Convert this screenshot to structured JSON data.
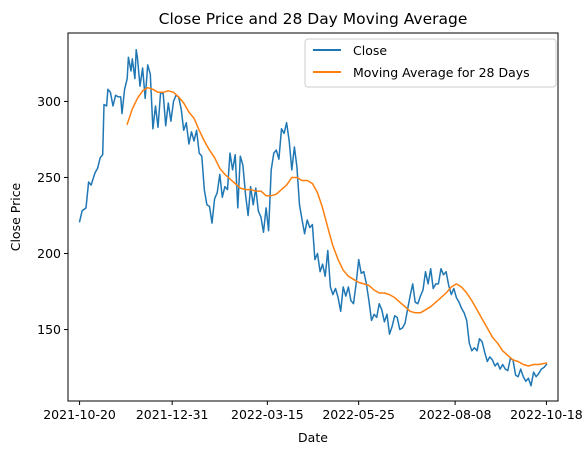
{
  "chart_data": {
    "type": "line",
    "title": "Close Price and 28 Day Moving Average",
    "xlabel": "Date",
    "ylabel": "Close Price",
    "x_range": [
      "2021-10-11",
      "2022-10-27"
    ],
    "y_range": [
      103,
      345
    ],
    "x_ticks": [
      "2021-10-20",
      "2021-12-31",
      "2022-03-15",
      "2022-05-25",
      "2022-08-08",
      "2022-10-18"
    ],
    "y_ticks": [
      150,
      200,
      250,
      300
    ],
    "grid": false,
    "legend_position": "upper right",
    "series": [
      {
        "name": "Close",
        "color": "#1f77b4",
        "points": [
          [
            "2021-10-20",
            221
          ],
          [
            "2021-10-22",
            228
          ],
          [
            "2021-10-25",
            230
          ],
          [
            "2021-10-27",
            247
          ],
          [
            "2021-10-29",
            245
          ],
          [
            "2021-11-01",
            253
          ],
          [
            "2021-11-03",
            256
          ],
          [
            "2021-11-05",
            263
          ],
          [
            "2021-11-07",
            265
          ],
          [
            "2021-11-08",
            298
          ],
          [
            "2021-11-10",
            297
          ],
          [
            "2021-11-11",
            308
          ],
          [
            "2021-11-13",
            306
          ],
          [
            "2021-11-15",
            297
          ],
          [
            "2021-11-17",
            304
          ],
          [
            "2021-11-19",
            303
          ],
          [
            "2021-11-21",
            303
          ],
          [
            "2021-11-22",
            292
          ],
          [
            "2021-11-24",
            308
          ],
          [
            "2021-11-26",
            315
          ],
          [
            "2021-11-27",
            329
          ],
          [
            "2021-11-29",
            320
          ],
          [
            "2021-11-30",
            328
          ],
          [
            "2021-12-02",
            315
          ],
          [
            "2021-12-03",
            334
          ],
          [
            "2021-12-04",
            329
          ],
          [
            "2021-12-06",
            310
          ],
          [
            "2021-12-08",
            322
          ],
          [
            "2021-12-10",
            302
          ],
          [
            "2021-12-12",
            324
          ],
          [
            "2021-12-14",
            318
          ],
          [
            "2021-12-16",
            282
          ],
          [
            "2021-12-18",
            297
          ],
          [
            "2021-12-20",
            283
          ],
          [
            "2021-12-22",
            306
          ],
          [
            "2021-12-24",
            305
          ],
          [
            "2021-12-26",
            284
          ],
          [
            "2021-12-28",
            299
          ],
          [
            "2021-12-30",
            287
          ],
          [
            "2022-01-01",
            300
          ],
          [
            "2022-01-03",
            304
          ],
          [
            "2022-01-05",
            303
          ],
          [
            "2022-01-07",
            295
          ],
          [
            "2022-01-09",
            281
          ],
          [
            "2022-01-11",
            286
          ],
          [
            "2022-01-13",
            272
          ],
          [
            "2022-01-15",
            280
          ],
          [
            "2022-01-17",
            274
          ],
          [
            "2022-01-19",
            281
          ],
          [
            "2022-01-21",
            266
          ],
          [
            "2022-01-23",
            264
          ],
          [
            "2022-01-25",
            242
          ],
          [
            "2022-01-27",
            232
          ],
          [
            "2022-01-29",
            231
          ],
          [
            "2022-01-31",
            220
          ],
          [
            "2022-02-02",
            236
          ],
          [
            "2022-02-04",
            240
          ],
          [
            "2022-02-06",
            252
          ],
          [
            "2022-02-08",
            237
          ],
          [
            "2022-02-10",
            244
          ],
          [
            "2022-02-12",
            242
          ],
          [
            "2022-02-14",
            266
          ],
          [
            "2022-02-16",
            255
          ],
          [
            "2022-02-18",
            265
          ],
          [
            "2022-02-20",
            230
          ],
          [
            "2022-02-22",
            264
          ],
          [
            "2022-02-24",
            258
          ],
          [
            "2022-02-26",
            239
          ],
          [
            "2022-02-28",
            225
          ],
          [
            "2022-03-02",
            244
          ],
          [
            "2022-03-04",
            232
          ],
          [
            "2022-03-06",
            243
          ],
          [
            "2022-03-08",
            228
          ],
          [
            "2022-03-10",
            224
          ],
          [
            "2022-03-12",
            214
          ],
          [
            "2022-03-14",
            230
          ],
          [
            "2022-03-16",
            215
          ],
          [
            "2022-03-18",
            255
          ],
          [
            "2022-03-20",
            266
          ],
          [
            "2022-03-22",
            268
          ],
          [
            "2022-03-24",
            262
          ],
          [
            "2022-03-26",
            282
          ],
          [
            "2022-03-28",
            279
          ],
          [
            "2022-03-30",
            286
          ],
          [
            "2022-04-01",
            274
          ],
          [
            "2022-04-03",
            255
          ],
          [
            "2022-04-05",
            270
          ],
          [
            "2022-04-07",
            257
          ],
          [
            "2022-04-09",
            232
          ],
          [
            "2022-04-11",
            222
          ],
          [
            "2022-04-13",
            213
          ],
          [
            "2022-04-15",
            222
          ],
          [
            "2022-04-17",
            217
          ],
          [
            "2022-04-19",
            219
          ],
          [
            "2022-04-21",
            196
          ],
          [
            "2022-04-23",
            200
          ],
          [
            "2022-04-25",
            188
          ],
          [
            "2022-04-27",
            193
          ],
          [
            "2022-04-29",
            185
          ],
          [
            "2022-05-01",
            202
          ],
          [
            "2022-05-03",
            178
          ],
          [
            "2022-05-05",
            173
          ],
          [
            "2022-05-07",
            177
          ],
          [
            "2022-05-09",
            171
          ],
          [
            "2022-05-11",
            162
          ],
          [
            "2022-05-13",
            178
          ],
          [
            "2022-05-15",
            172
          ],
          [
            "2022-05-17",
            178
          ],
          [
            "2022-05-19",
            169
          ],
          [
            "2022-05-21",
            167
          ],
          [
            "2022-05-23",
            180
          ],
          [
            "2022-05-25",
            196
          ],
          [
            "2022-05-27",
            187
          ],
          [
            "2022-05-29",
            188
          ],
          [
            "2022-05-31",
            180
          ],
          [
            "2022-06-02",
            169
          ],
          [
            "2022-06-04",
            156
          ],
          [
            "2022-06-06",
            160
          ],
          [
            "2022-06-08",
            158
          ],
          [
            "2022-06-10",
            167
          ],
          [
            "2022-06-12",
            163
          ],
          [
            "2022-06-14",
            155
          ],
          [
            "2022-06-16",
            160
          ],
          [
            "2022-06-18",
            147
          ],
          [
            "2022-06-20",
            152
          ],
          [
            "2022-06-22",
            159
          ],
          [
            "2022-06-24",
            158
          ],
          [
            "2022-06-26",
            150
          ],
          [
            "2022-06-28",
            151
          ],
          [
            "2022-06-30",
            154
          ],
          [
            "2022-07-02",
            163
          ],
          [
            "2022-07-04",
            172
          ],
          [
            "2022-07-06",
            180
          ],
          [
            "2022-07-08",
            168
          ],
          [
            "2022-07-10",
            167
          ],
          [
            "2022-07-12",
            172
          ],
          [
            "2022-07-14",
            176
          ],
          [
            "2022-07-16",
            188
          ],
          [
            "2022-07-18",
            180
          ],
          [
            "2022-07-20",
            190
          ],
          [
            "2022-07-22",
            177
          ],
          [
            "2022-07-24",
            180
          ],
          [
            "2022-07-26",
            180
          ],
          [
            "2022-07-28",
            190
          ],
          [
            "2022-07-30",
            186
          ],
          [
            "2022-08-01",
            188
          ],
          [
            "2022-08-03",
            179
          ],
          [
            "2022-08-05",
            173
          ],
          [
            "2022-08-07",
            177
          ],
          [
            "2022-08-09",
            171
          ],
          [
            "2022-08-11",
            168
          ],
          [
            "2022-08-13",
            164
          ],
          [
            "2022-08-15",
            161
          ],
          [
            "2022-08-17",
            156
          ],
          [
            "2022-08-19",
            141
          ],
          [
            "2022-08-21",
            136
          ],
          [
            "2022-08-23",
            138
          ],
          [
            "2022-08-25",
            136
          ],
          [
            "2022-08-27",
            144
          ],
          [
            "2022-08-29",
            142
          ],
          [
            "2022-08-31",
            135
          ],
          [
            "2022-09-02",
            129
          ],
          [
            "2022-09-04",
            132
          ],
          [
            "2022-09-06",
            130
          ],
          [
            "2022-09-08",
            126
          ],
          [
            "2022-09-10",
            128
          ],
          [
            "2022-09-12",
            124
          ],
          [
            "2022-09-14",
            127
          ],
          [
            "2022-09-16",
            124
          ],
          [
            "2022-09-18",
            123
          ],
          [
            "2022-09-20",
            131
          ],
          [
            "2022-09-22",
            130
          ],
          [
            "2022-09-24",
            120
          ],
          [
            "2022-09-26",
            119
          ],
          [
            "2022-09-28",
            124
          ],
          [
            "2022-09-30",
            119
          ],
          [
            "2022-10-02",
            116
          ],
          [
            "2022-10-04",
            118
          ],
          [
            "2022-10-06",
            113
          ],
          [
            "2022-10-08",
            122
          ],
          [
            "2022-10-10",
            119
          ],
          [
            "2022-10-12",
            121
          ],
          [
            "2022-10-14",
            124
          ],
          [
            "2022-10-16",
            125
          ],
          [
            "2022-10-18",
            127
          ]
        ]
      },
      {
        "name": "Moving Average for 28 Days",
        "color": "#ff7f0e",
        "points": [
          [
            "2021-11-26",
            285
          ],
          [
            "2021-11-30",
            295
          ],
          [
            "2021-12-04",
            302
          ],
          [
            "2021-12-08",
            307
          ],
          [
            "2021-12-12",
            309
          ],
          [
            "2021-12-16",
            308
          ],
          [
            "2021-12-20",
            306
          ],
          [
            "2021-12-24",
            306
          ],
          [
            "2021-12-28",
            307
          ],
          [
            "2022-01-01",
            306
          ],
          [
            "2022-01-05",
            303
          ],
          [
            "2022-01-09",
            299
          ],
          [
            "2022-01-13",
            293
          ],
          [
            "2022-01-17",
            289
          ],
          [
            "2022-01-21",
            281
          ],
          [
            "2022-01-25",
            274
          ],
          [
            "2022-01-29",
            268
          ],
          [
            "2022-02-02",
            263
          ],
          [
            "2022-02-06",
            256
          ],
          [
            "2022-02-10",
            252
          ],
          [
            "2022-02-14",
            249
          ],
          [
            "2022-02-18",
            246
          ],
          [
            "2022-02-22",
            243
          ],
          [
            "2022-02-26",
            242
          ],
          [
            "2022-03-02",
            242
          ],
          [
            "2022-03-06",
            241
          ],
          [
            "2022-03-10",
            241
          ],
          [
            "2022-03-14",
            238
          ],
          [
            "2022-03-18",
            238
          ],
          [
            "2022-03-22",
            239
          ],
          [
            "2022-03-26",
            242
          ],
          [
            "2022-03-30",
            245
          ],
          [
            "2022-04-03",
            250
          ],
          [
            "2022-04-07",
            250
          ],
          [
            "2022-04-11",
            248
          ],
          [
            "2022-04-15",
            248
          ],
          [
            "2022-04-19",
            246
          ],
          [
            "2022-04-23",
            240
          ],
          [
            "2022-04-27",
            230
          ],
          [
            "2022-05-01",
            217
          ],
          [
            "2022-05-05",
            205
          ],
          [
            "2022-05-09",
            196
          ],
          [
            "2022-05-13",
            189
          ],
          [
            "2022-05-17",
            185
          ],
          [
            "2022-05-21",
            183
          ],
          [
            "2022-05-25",
            181
          ],
          [
            "2022-05-29",
            180
          ],
          [
            "2022-06-02",
            179
          ],
          [
            "2022-06-06",
            176
          ],
          [
            "2022-06-10",
            174
          ],
          [
            "2022-06-14",
            174
          ],
          [
            "2022-06-18",
            173
          ],
          [
            "2022-06-22",
            171
          ],
          [
            "2022-06-26",
            168
          ],
          [
            "2022-06-30",
            165
          ],
          [
            "2022-07-04",
            162
          ],
          [
            "2022-07-08",
            161
          ],
          [
            "2022-07-12",
            161
          ],
          [
            "2022-07-16",
            163
          ],
          [
            "2022-07-20",
            165
          ],
          [
            "2022-07-24",
            168
          ],
          [
            "2022-07-28",
            171
          ],
          [
            "2022-08-01",
            174
          ],
          [
            "2022-08-05",
            178
          ],
          [
            "2022-08-09",
            180
          ],
          [
            "2022-08-13",
            178
          ],
          [
            "2022-08-17",
            174
          ],
          [
            "2022-08-21",
            169
          ],
          [
            "2022-08-25",
            163
          ],
          [
            "2022-08-29",
            157
          ],
          [
            "2022-09-02",
            151
          ],
          [
            "2022-09-06",
            145
          ],
          [
            "2022-09-10",
            141
          ],
          [
            "2022-09-14",
            136
          ],
          [
            "2022-09-18",
            133
          ],
          [
            "2022-09-22",
            130
          ],
          [
            "2022-09-26",
            129
          ],
          [
            "2022-09-30",
            127
          ],
          [
            "2022-10-04",
            126
          ],
          [
            "2022-10-08",
            127
          ],
          [
            "2022-10-12",
            127
          ],
          [
            "2022-10-18",
            128
          ]
        ]
      }
    ]
  }
}
